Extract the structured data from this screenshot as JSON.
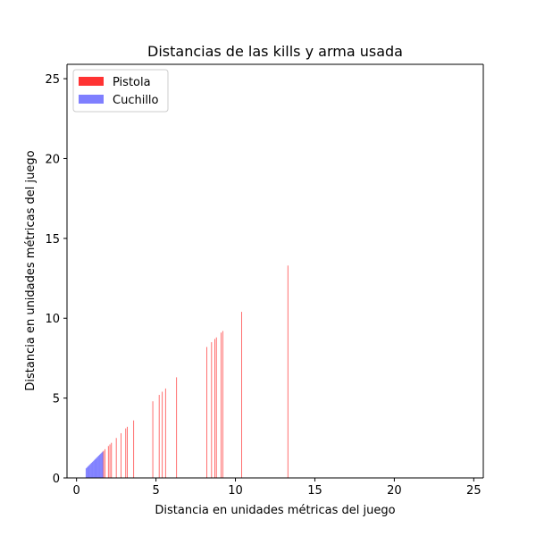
{
  "chart_data": {
    "type": "bar",
    "title": "Distancias de las kills y arma usada",
    "xlabel": "Distancia en unidades métricas del juego",
    "ylabel": "Distancia en unidades métricas del juego",
    "xlim": [
      -0.6,
      25.6
    ],
    "ylim": [
      0,
      25.9
    ],
    "xticks": [
      0,
      5,
      10,
      15,
      20,
      25
    ],
    "yticks": [
      0,
      5,
      10,
      15,
      20,
      25
    ],
    "grid": false,
    "legend_position": "top-left",
    "series": [
      {
        "name": "Pistola",
        "color": "#ff0000",
        "opacity": 0.8,
        "values": [
          1.7,
          1.8,
          2.0,
          2.1,
          2.2,
          2.5,
          2.8,
          3.1,
          3.2,
          3.6,
          4.8,
          5.2,
          5.4,
          5.6,
          6.3,
          8.2,
          8.5,
          8.7,
          8.8,
          9.1,
          9.2,
          10.4,
          13.3
        ]
      },
      {
        "name": "Cuchillo",
        "color": "#0000ff",
        "opacity": 0.5,
        "values": [
          0.6,
          0.65,
          0.7,
          0.75,
          0.8,
          0.85,
          0.9,
          0.95,
          1.0,
          1.05,
          1.1,
          1.15,
          1.2,
          1.25,
          1.3,
          1.35,
          1.4,
          1.45,
          1.5,
          1.55,
          1.6,
          1.65
        ]
      }
    ]
  }
}
